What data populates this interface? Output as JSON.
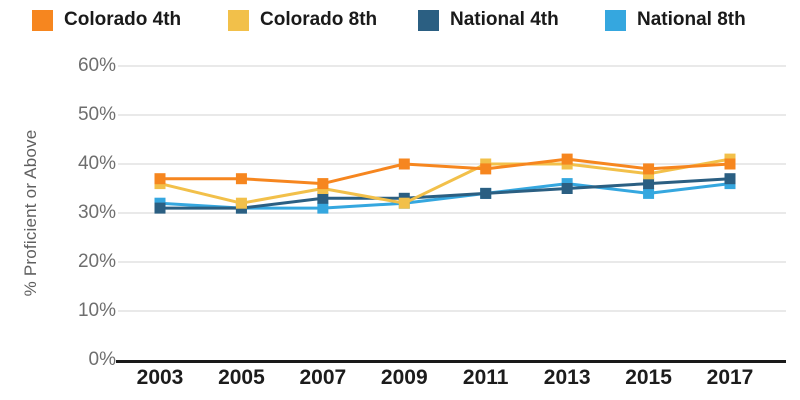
{
  "chart_data": {
    "type": "line",
    "title": "",
    "xlabel": "",
    "ylabel": "% Proficient or Above",
    "categories": [
      "2003",
      "2005",
      "2007",
      "2009",
      "2011",
      "2013",
      "2015",
      "2017"
    ],
    "series": [
      {
        "name": "Colorado 4th",
        "color": "#F6861F",
        "values": [
          37,
          37,
          36,
          40,
          39,
          41,
          39,
          40
        ]
      },
      {
        "name": "Colorado 8th",
        "color": "#F2C04A",
        "values": [
          36,
          32,
          35,
          32,
          40,
          40,
          38,
          41
        ]
      },
      {
        "name": "National 4th",
        "color": "#2B5F82",
        "values": [
          31,
          31,
          33,
          33,
          34,
          35,
          36,
          37
        ]
      },
      {
        "name": "National 8th",
        "color": "#35A7DF",
        "values": [
          32,
          31,
          31,
          32,
          34,
          36,
          34,
          36
        ]
      }
    ],
    "ylim": [
      0,
      60
    ],
    "ytick_values": [
      0,
      10,
      20,
      30,
      40,
      50,
      60
    ],
    "ytick_labels": [
      "0%",
      "10%",
      "20%",
      "30%",
      "40%",
      "50%",
      "60%"
    ],
    "grid": true,
    "legend_position": "top",
    "colors": {
      "gridline": "#e2e2e2",
      "axis_line": "#1a1a1a",
      "y_tick_text": "#6e6e6e",
      "x_tick_text": "#1c1c1c",
      "legend_text": "#1a1a1a",
      "axis_title_text": "#5f5f5f"
    }
  }
}
